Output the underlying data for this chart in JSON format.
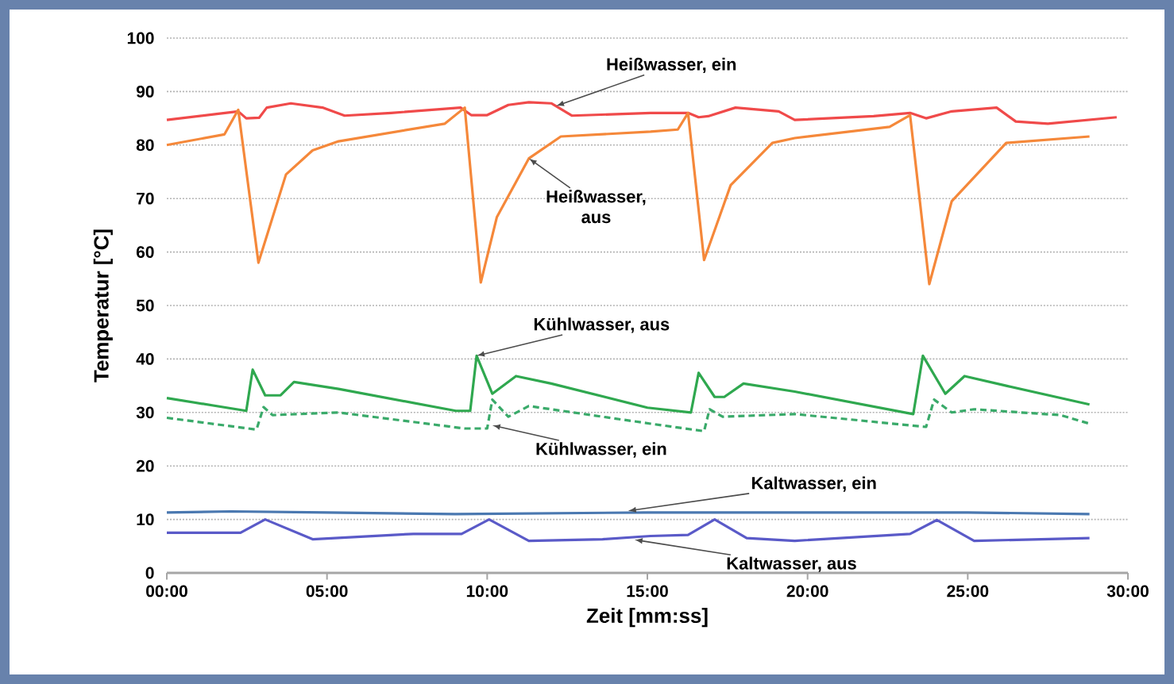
{
  "chart_data": {
    "type": "line",
    "xlabel": "Zeit [mm:ss]",
    "ylabel": "Temperatur [°C]",
    "xlim": [
      0,
      30
    ],
    "ylim": [
      0,
      100
    ],
    "xticks": [
      {
        "value": 0,
        "label": "00:00"
      },
      {
        "value": 5,
        "label": "05:00"
      },
      {
        "value": 10,
        "label": "10:00"
      },
      {
        "value": 15,
        "label": "15:00"
      },
      {
        "value": 20,
        "label": "20:00"
      },
      {
        "value": 25,
        "label": "25:00"
      },
      {
        "value": 30,
        "label": "30:00"
      }
    ],
    "yticks": [
      0,
      10,
      20,
      30,
      40,
      50,
      60,
      70,
      80,
      90,
      100
    ],
    "grid": "y",
    "marker": "none",
    "series": [
      {
        "color": "#f04a4a",
        "line_style": "solid",
        "x": [
          0,
          2.23,
          2.48,
          2.88,
          3.12,
          3.87,
          4.86,
          5.55,
          7.0,
          9.17,
          9.5,
          10,
          10.66,
          11.3,
          12,
          12.64,
          15.1,
          16.27,
          16.6,
          16.9,
          17.75,
          19.1,
          19.6,
          22.06,
          23.2,
          23.7,
          24.5,
          25.9,
          26.5,
          27.5,
          29.65
        ],
        "values": [
          84.7,
          86.3,
          85,
          85.1,
          87,
          87.8,
          87,
          85.5,
          86,
          87,
          85.6,
          85.6,
          87.5,
          88,
          87.8,
          85.5,
          86,
          86,
          85.2,
          85.4,
          87,
          86.3,
          84.7,
          85.4,
          86,
          85,
          86.3,
          87,
          84.4,
          84,
          85.2
        ]
      },
      {
        "color": "#f5883a",
        "line_style": "solid",
        "x": [
          0,
          1.8,
          2.23,
          2.86,
          3.72,
          4.55,
          5.36,
          8.68,
          9.3,
          9.8,
          10.3,
          11.3,
          12.3,
          15.1,
          15.95,
          16.27,
          16.77,
          17.6,
          18.9,
          19.6,
          22.56,
          23.2,
          23.8,
          24.5,
          26.2,
          28.8
        ],
        "values": [
          80,
          82,
          86.6,
          58,
          74.5,
          79,
          80.7,
          84,
          87,
          54.3,
          66.5,
          77.5,
          81.6,
          82.5,
          82.9,
          86,
          58.5,
          72.5,
          80.4,
          81.3,
          83.4,
          85.6,
          54,
          69.5,
          80.4,
          81.6
        ]
      },
      {
        "color": "#2fa84f",
        "line_style": "solid",
        "x": [
          0,
          2.48,
          2.68,
          3.07,
          3.55,
          3.97,
          5.36,
          9.02,
          9.47,
          9.67,
          10.16,
          10.9,
          12,
          15,
          16.36,
          16.6,
          17.1,
          17.4,
          18,
          19.6,
          23.3,
          23.6,
          24.3,
          24.9,
          26.2,
          28.8
        ],
        "values": [
          32.7,
          30.3,
          38,
          33.2,
          33.2,
          35.7,
          34.4,
          30.3,
          30.3,
          40.6,
          33.5,
          36.8,
          35.4,
          30.9,
          30,
          37.4,
          32.9,
          32.9,
          35.4,
          33.9,
          29.7,
          40.6,
          33.5,
          36.8,
          35,
          31.5
        ]
      },
      {
        "color": "#3aaa6a",
        "line_style": "dashed",
        "x": [
          0,
          2.8,
          3.02,
          3.3,
          5.36,
          9.3,
          10,
          10.16,
          10.66,
          11.3,
          15.1,
          16.77,
          16.94,
          17.35,
          19.6,
          23.7,
          23.95,
          24.5,
          25.2,
          27.9,
          28.8
        ],
        "values": [
          29,
          26.8,
          31,
          29.5,
          30,
          27,
          27,
          32.4,
          29.2,
          31.2,
          27.9,
          26.5,
          30.6,
          29.2,
          29.7,
          27.3,
          32.4,
          30,
          30.6,
          29.5,
          27.9
        ]
      },
      {
        "color": "#4a78b0",
        "line_style": "solid",
        "x": [
          0,
          2,
          5,
          9,
          15,
          20,
          25,
          28.8
        ],
        "values": [
          11.3,
          11.5,
          11.3,
          11,
          11.3,
          11.3,
          11.3,
          11
        ]
      },
      {
        "color": "#5a5ac8",
        "line_style": "solid",
        "x": [
          0,
          2.3,
          3.07,
          4.55,
          7.7,
          9.2,
          10.06,
          11.3,
          13.6,
          15.1,
          16.27,
          17.1,
          18.1,
          19.6,
          23.2,
          24.04,
          25.2,
          28.8
        ],
        "values": [
          7.5,
          7.5,
          10,
          6.3,
          7.3,
          7.3,
          10,
          6,
          6.3,
          6.9,
          7.1,
          10,
          6.5,
          6,
          7.3,
          9.9,
          6,
          6.5
        ]
      }
    ],
    "annotations": [
      {
        "text": "Heißwasser, ein",
        "x": 12.15,
        "y": 87.3
      },
      {
        "text": "Heißwasser, aus",
        "x": 11.3,
        "y": 77.5
      },
      {
        "text": "Kühlwasser, aus",
        "x": 9.67,
        "y": 40.6
      },
      {
        "text": "Kühlwasser, ein",
        "x": 10.16,
        "y": 27.6
      },
      {
        "text": "Kaltwasser, ein",
        "x": 14.4,
        "y": 11.6
      },
      {
        "text": "Kaltwasser, aus",
        "x": 14.6,
        "y": 6.2
      }
    ]
  }
}
